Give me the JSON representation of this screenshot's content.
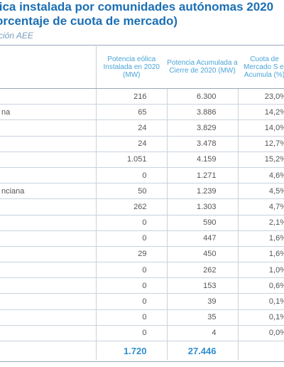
{
  "title_line1": "lica instalada por comunidades autónomas 2020",
  "title_line2": "orcentaje de cuota de mercado)",
  "source": "ción AEE",
  "headers": {
    "installed": "Potencia eólica Instalada en 2020 (MW)",
    "accumulated": "Potencia Acumulada a Cierre de 2020 (MW)",
    "share": "Cuota de Mercado S el Acumula (%)"
  },
  "rows": [
    {
      "name": "",
      "installed": "216",
      "accumulated": "6.300",
      "share": "23,0%"
    },
    {
      "name": "na",
      "installed": "65",
      "accumulated": "3.886",
      "share": "14,2%"
    },
    {
      "name": "",
      "installed": "24",
      "accumulated": "3.829",
      "share": "14,0%"
    },
    {
      "name": "",
      "installed": "24",
      "accumulated": "3.478",
      "share": "12,7%"
    },
    {
      "name": "",
      "installed": "1.051",
      "accumulated": "4.159",
      "share": "15,2%"
    },
    {
      "name": "",
      "installed": "0",
      "accumulated": "1.271",
      "share": "4,6%"
    },
    {
      "name": "nciana",
      "installed": "50",
      "accumulated": "1.239",
      "share": "4,5%"
    },
    {
      "name": "",
      "installed": "262",
      "accumulated": "1.303",
      "share": "4,7%"
    },
    {
      "name": "",
      "installed": "0",
      "accumulated": "590",
      "share": "2,1%"
    },
    {
      "name": "",
      "installed": "0",
      "accumulated": "447",
      "share": "1,6%"
    },
    {
      "name": "",
      "installed": "29",
      "accumulated": "450",
      "share": "1,6%"
    },
    {
      "name": "",
      "installed": "0",
      "accumulated": "262",
      "share": "1,0%"
    },
    {
      "name": "",
      "installed": "0",
      "accumulated": "153",
      "share": "0,6%"
    },
    {
      "name": "",
      "installed": "0",
      "accumulated": "39",
      "share": "0,1%"
    },
    {
      "name": "",
      "installed": "0",
      "accumulated": "35",
      "share": "0,1%"
    },
    {
      "name": "",
      "installed": "0",
      "accumulated": "4",
      "share": "0,0%"
    }
  ],
  "total": {
    "name": "",
    "installed": "1.720",
    "accumulated": "27.446",
    "share": ""
  }
}
